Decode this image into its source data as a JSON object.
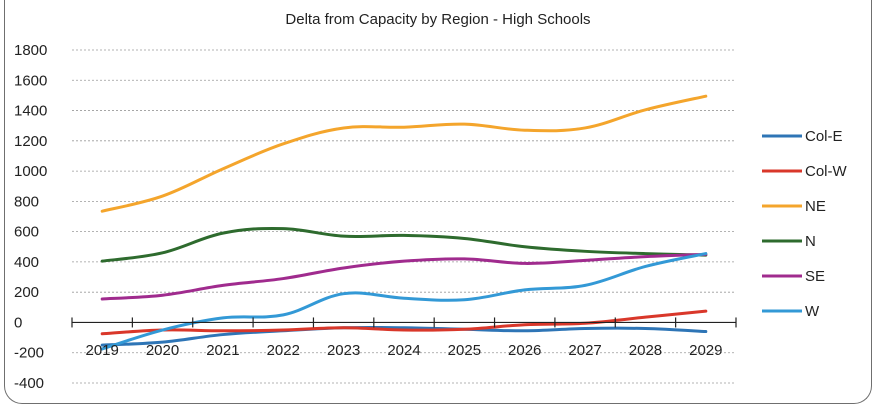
{
  "chart_data": {
    "type": "line",
    "title": "Delta from Capacity by Region - High Schools",
    "categories": [
      "2019",
      "2020",
      "2021",
      "2022",
      "2023",
      "2024",
      "2025",
      "2026",
      "2027",
      "2028",
      "2029"
    ],
    "ylim": [
      -400,
      1800
    ],
    "yticks": [
      "-400",
      "-200",
      "0",
      "200",
      "400",
      "600",
      "800",
      "1000",
      "1200",
      "1400",
      "1600",
      "1800"
    ],
    "grid": true,
    "legend_position": "right",
    "series": [
      {
        "name": "Col-E",
        "color": "#2e75b6",
        "values": [
          -150,
          -130,
          -80,
          -55,
          -35,
          -35,
          -45,
          -55,
          -40,
          -40,
          -60
        ]
      },
      {
        "name": "Col-W",
        "color": "#d9372a",
        "values": [
          -75,
          -50,
          -55,
          -50,
          -35,
          -50,
          -45,
          -15,
          -5,
          35,
          75
        ]
      },
      {
        "name": "NE",
        "color": "#f4a52c",
        "values": [
          735,
          835,
          1015,
          1180,
          1285,
          1290,
          1310,
          1270,
          1285,
          1405,
          1495
        ]
      },
      {
        "name": "N",
        "color": "#2e6b2e",
        "values": [
          405,
          460,
          590,
          620,
          570,
          575,
          555,
          500,
          470,
          455,
          445
        ]
      },
      {
        "name": "SE",
        "color": "#a02b8e",
        "values": [
          155,
          180,
          245,
          290,
          360,
          405,
          420,
          390,
          410,
          435,
          450
        ]
      },
      {
        "name": "W",
        "color": "#3399d6",
        "values": [
          -175,
          -50,
          30,
          50,
          190,
          160,
          150,
          215,
          245,
          370,
          455
        ]
      }
    ]
  }
}
